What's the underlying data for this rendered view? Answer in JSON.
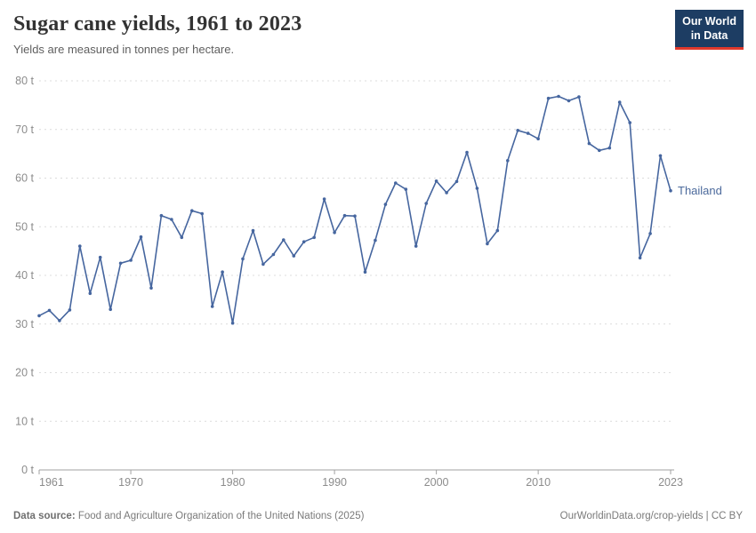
{
  "header": {
    "title": "Sugar cane yields, 1961 to 2023",
    "subtitle": "Yields are measured in tonnes per hectare.",
    "logo": {
      "line1": "Our World",
      "line2": "in Data",
      "bg_color": "#1d3d63",
      "stripe_color": "#e0392c"
    }
  },
  "footer": {
    "source_label": "Data source:",
    "source_text": " Food and Agriculture Organization of the United Nations (2025)",
    "right_text": "OurWorldinData.org/crop-yields | CC BY"
  },
  "colors": {
    "line": "#46669F",
    "entity_label": "#4C6A9C",
    "axis_text": "#8c8c8c",
    "grid": "#dcdcdc",
    "axis_line": "#a1a1a1"
  },
  "chart_data": {
    "type": "line",
    "title": "Sugar cane yields, 1961 to 2023",
    "subtitle": "Yields are measured in tonnes per hectare.",
    "unit": "t",
    "ylabel": "tonnes per hectare",
    "xlabel": "",
    "xlim": [
      1961,
      2023
    ],
    "ylim": [
      0,
      80
    ],
    "xticks": [
      1961,
      1970,
      1980,
      1990,
      2000,
      2010,
      2023
    ],
    "yticks": [
      0,
      10,
      20,
      30,
      40,
      50,
      60,
      70,
      80
    ],
    "ytick_suffix": " t",
    "grid": "horizontal-dashed",
    "legend": "entity label at end of line",
    "series": [
      {
        "name": "Thailand",
        "color": "#46669F",
        "x": [
          1961,
          1962,
          1963,
          1964,
          1965,
          1966,
          1967,
          1968,
          1969,
          1970,
          1971,
          1972,
          1973,
          1974,
          1975,
          1976,
          1977,
          1978,
          1979,
          1980,
          1981,
          1982,
          1983,
          1984,
          1985,
          1986,
          1987,
          1988,
          1989,
          1990,
          1991,
          1992,
          1993,
          1994,
          1995,
          1996,
          1997,
          1998,
          1999,
          2000,
          2001,
          2002,
          2003,
          2004,
          2005,
          2006,
          2007,
          2008,
          2009,
          2010,
          2011,
          2012,
          2013,
          2014,
          2015,
          2016,
          2017,
          2018,
          2019,
          2020,
          2021,
          2022,
          2023
        ],
        "values": [
          31.7,
          32.8,
          30.7,
          32.9,
          46.0,
          36.3,
          43.7,
          33.0,
          42.5,
          43.1,
          47.9,
          37.4,
          52.3,
          51.5,
          47.8,
          53.3,
          52.7,
          33.6,
          40.7,
          30.2,
          43.4,
          49.2,
          42.3,
          44.3,
          47.3,
          44.0,
          46.9,
          47.8,
          55.7,
          48.8,
          52.3,
          52.2,
          40.7,
          47.2,
          54.6,
          59.0,
          57.7,
          46.0,
          54.8,
          59.4,
          57.0,
          59.3,
          65.3,
          57.9,
          46.5,
          49.2,
          63.6,
          69.8,
          69.2,
          68.1,
          76.4,
          76.8,
          75.9,
          76.7,
          67.1,
          65.7,
          66.2,
          75.6,
          71.4,
          43.6,
          48.6,
          64.6,
          57.4
        ]
      }
    ]
  }
}
